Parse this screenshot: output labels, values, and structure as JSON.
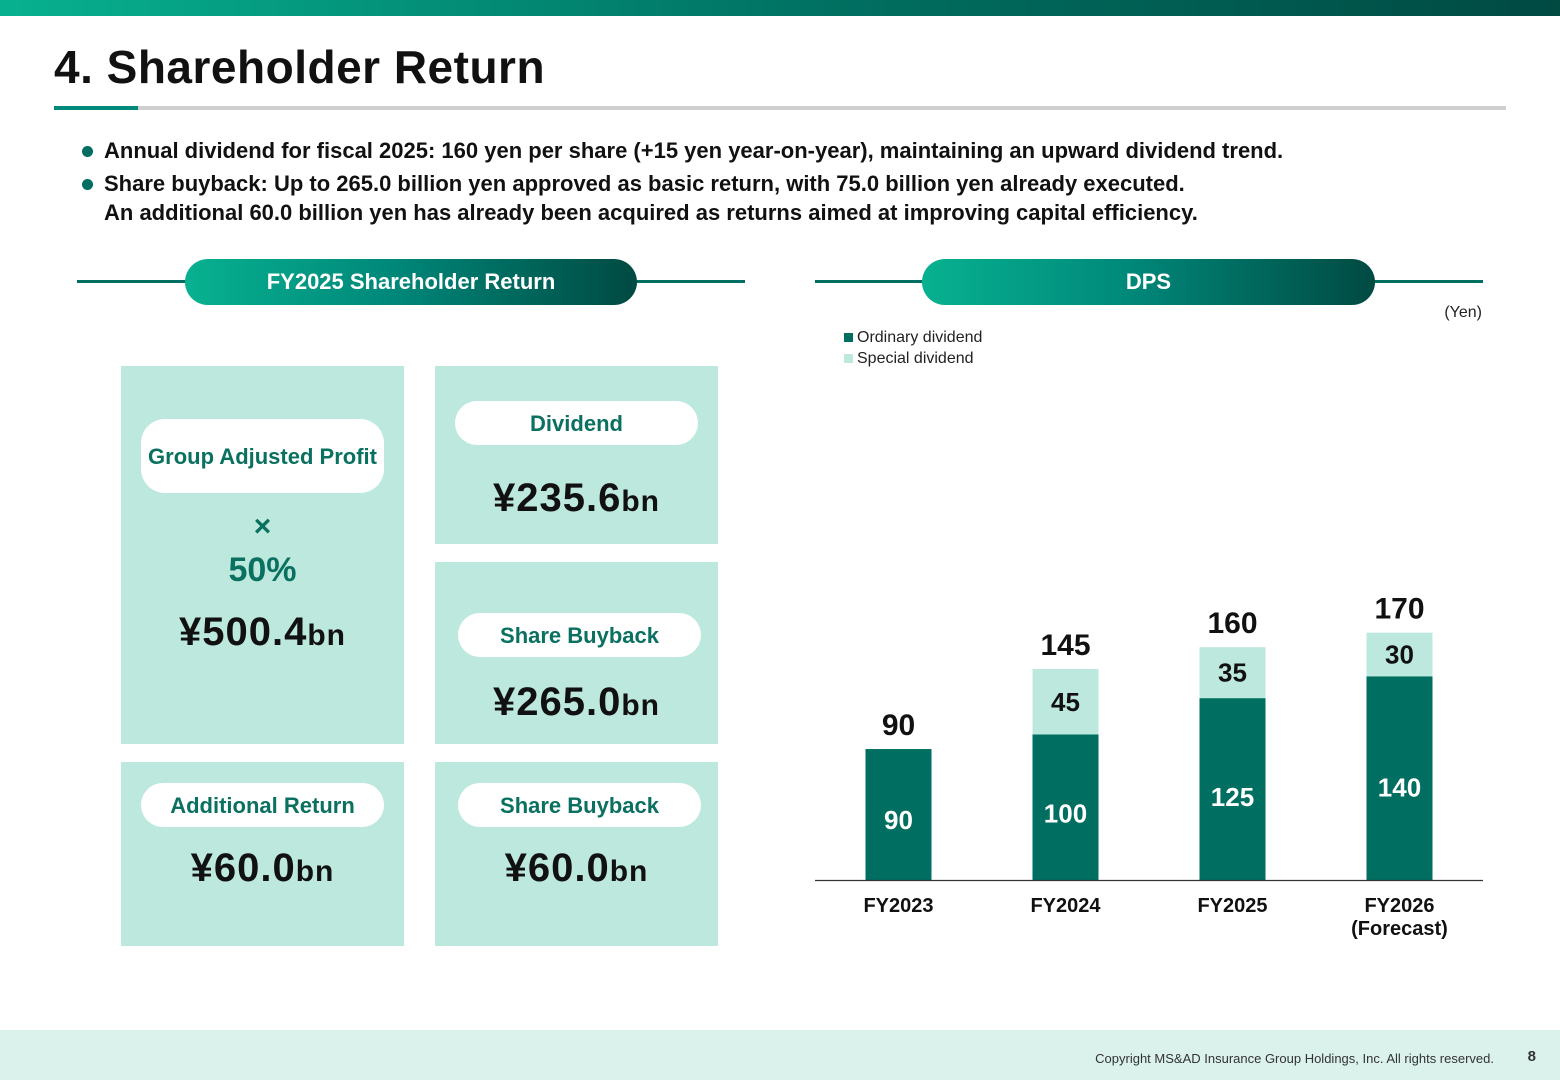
{
  "title": "4. Shareholder Return",
  "bullets": [
    {
      "lines": [
        "Annual dividend for fiscal 2025: 160 yen per share (+15 yen year-on-year), maintaining an upward dividend trend."
      ]
    },
    {
      "lines": [
        "Share buyback: Up to 265.0 billion yen approved as basic return, with 75.0 billion yen already executed.",
        "An additional 60.0 billion yen has already been acquired as returns aimed at improving capital efficiency."
      ]
    }
  ],
  "left_section": {
    "header": "FY2025 Shareholder Return",
    "group_adjusted": {
      "label": "Group Adjusted Profit",
      "multiplier": "×",
      "rate": "50%",
      "amount": "¥500.4",
      "unit": "bn"
    },
    "dividend": {
      "label": "Dividend",
      "amount": "¥235.6",
      "unit": "bn"
    },
    "share_buyback_basic": {
      "label": "Share Buyback",
      "amount": "¥265.0",
      "unit": "bn"
    },
    "additional_return": {
      "label": "Additional Return",
      "amount": "¥60.0",
      "unit": "bn"
    },
    "share_buyback_additional": {
      "label": "Share Buyback",
      "amount": "¥60.0",
      "unit": "bn"
    }
  },
  "right_section": {
    "header": "DPS"
  },
  "chart_data": {
    "type": "bar",
    "stacked": true,
    "unit_label": "(Yen)",
    "categories": [
      "FY2023",
      "FY2024",
      "FY2025",
      "FY2026\n(Forecast)"
    ],
    "series": [
      {
        "name": "Ordinary dividend",
        "values": [
          90,
          100,
          125,
          140
        ],
        "color": "#006e60"
      },
      {
        "name": "Special dividend",
        "values": [
          0,
          45,
          35,
          30
        ],
        "color": "#bde8de"
      }
    ],
    "totals": [
      90,
      145,
      160,
      170
    ],
    "ylim": [
      0,
      190
    ],
    "legend_position": "top-left",
    "grid": false
  },
  "footer": {
    "copyright": "Copyright MS&AD Insurance Group Holdings, Inc. All rights reserved.",
    "page_number": "8"
  },
  "colors": {
    "primary": "#006e60",
    "accent": "#07b190",
    "light": "#bde8de",
    "label_text": "#0a7060"
  }
}
